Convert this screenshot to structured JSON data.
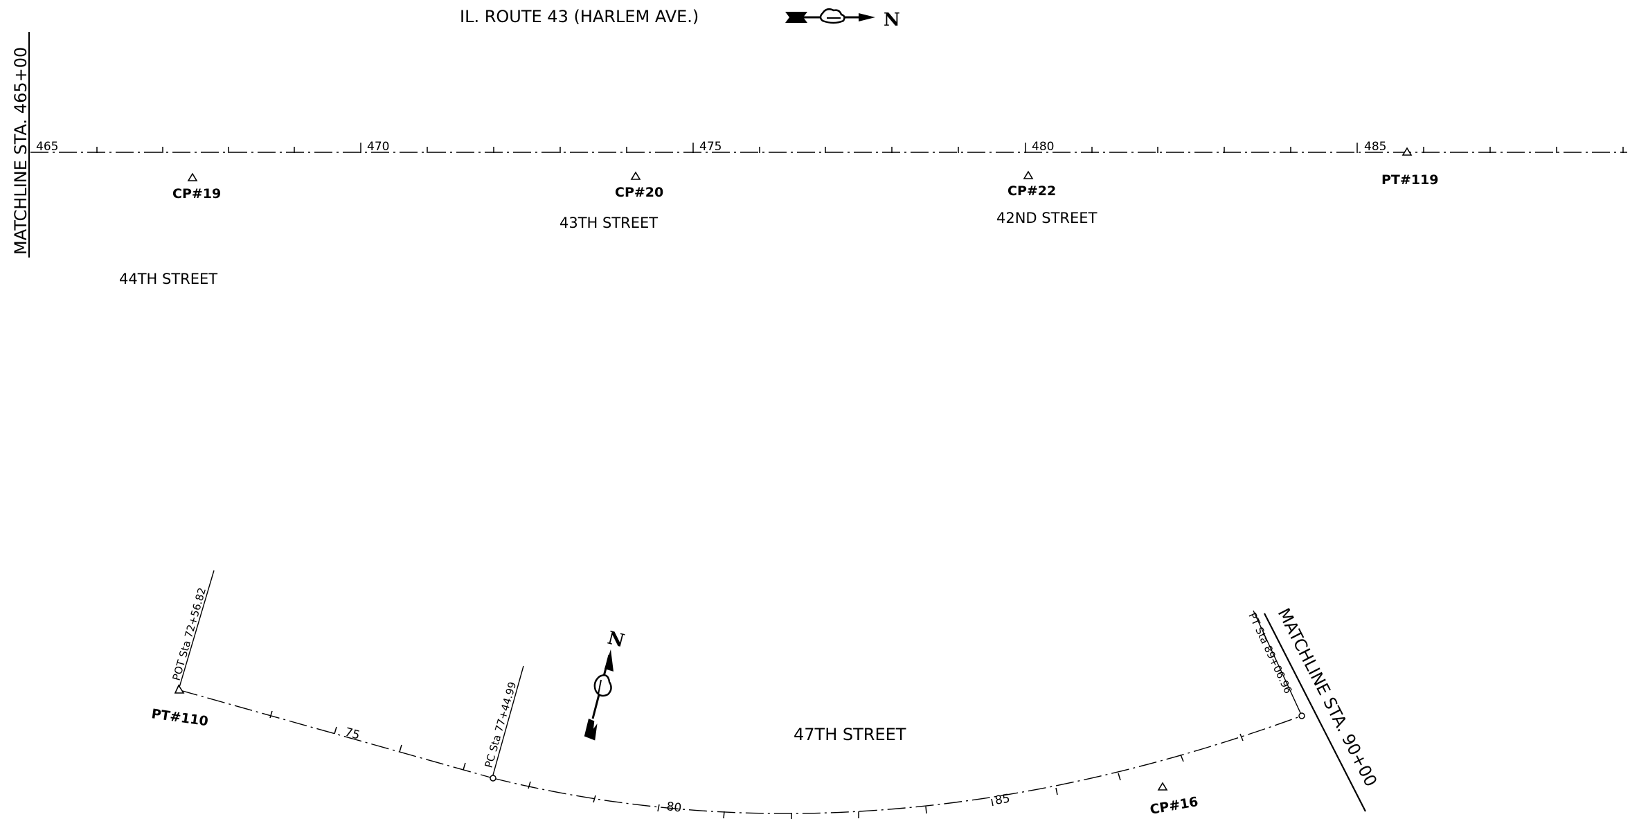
{
  "top": {
    "road_title": "IL. ROUTE 43 (HARLEM AVE.)",
    "north_letter": "N",
    "matchline": "MATCHLINE STA. 465+00",
    "stations": [
      "465",
      "470",
      "475",
      "480",
      "485"
    ],
    "points": [
      {
        "label": "CP#19"
      },
      {
        "label": "CP#20"
      },
      {
        "label": "CP#22"
      },
      {
        "label": "PT#119"
      }
    ],
    "streets": [
      "44TH STREET",
      "43TH STREET",
      "42ND STREET"
    ]
  },
  "bottom": {
    "street": "47TH STREET",
    "north_letter": "N",
    "matchline": "MATCHLINE STA. 90+00",
    "stations": [
      "75",
      "80",
      "85"
    ],
    "pot_label": "POT Sta 72+56.82",
    "pc_label": "PC Sta 77+44.99",
    "pt_label": "PT Sta 89+06.96",
    "points": [
      {
        "label": "PT#110"
      },
      {
        "label": "CP#16"
      }
    ]
  },
  "colors": {
    "ink": "#000000",
    "paper": "#ffffff"
  }
}
